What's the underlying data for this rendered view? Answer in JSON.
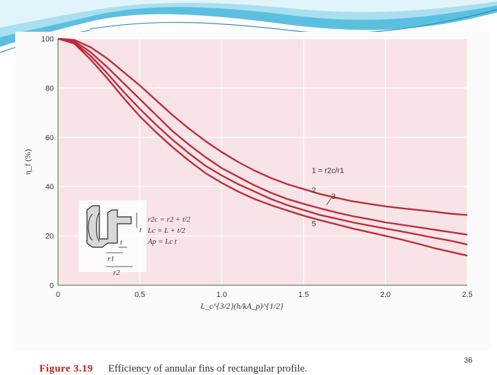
{
  "chart_data": {
    "type": "line",
    "title": "",
    "xlabel": "L_c^{3/2}(h/kA_p)^{1/2}",
    "ylabel": "η_f (%)",
    "xlim": [
      0,
      2.5
    ],
    "ylim": [
      0,
      100
    ],
    "x_ticks": [
      "0",
      "0.5",
      "1.0",
      "1.5",
      "2.0",
      "2.5"
    ],
    "y_ticks": [
      "0",
      "20",
      "40",
      "60",
      "80",
      "100"
    ],
    "x": [
      0,
      0.1,
      0.2,
      0.3,
      0.4,
      0.5,
      0.6,
      0.7,
      0.8,
      0.9,
      1.0,
      1.1,
      1.2,
      1.3,
      1.4,
      1.5,
      1.6,
      1.7,
      1.8,
      1.9,
      2.0,
      2.1,
      2.2,
      2.3,
      2.4,
      2.5
    ],
    "series": [
      {
        "name": "1",
        "label": "1 = r2c/r1",
        "values": [
          100,
          99.5,
          96.5,
          92,
          86.5,
          81,
          75,
          69,
          63.5,
          58.5,
          54,
          50,
          46.5,
          43.5,
          41,
          39,
          37,
          35.5,
          34,
          33,
          32,
          31.2,
          30.5,
          29.8,
          29,
          28.5
        ]
      },
      {
        "name": "2",
        "label": "2",
        "values": [
          100,
          99,
          94.5,
          88.5,
          82,
          75.5,
          69,
          62.5,
          57,
          52,
          47.5,
          44,
          40.5,
          37.5,
          35,
          33,
          31.2,
          29.5,
          28,
          26.8,
          25.5,
          24.5,
          23.5,
          22.5,
          21.5,
          20.5
        ]
      },
      {
        "name": "3",
        "label": "3",
        "values": [
          100,
          98.5,
          93,
          86,
          78.5,
          71.5,
          65,
          59,
          53.5,
          48.5,
          44.5,
          41,
          38,
          35,
          32.5,
          30.5,
          28.5,
          27,
          25.5,
          24.2,
          23,
          21.8,
          20.5,
          19.2,
          18,
          16.5
        ]
      },
      {
        "name": "5",
        "label": "5",
        "values": [
          100,
          98,
          91.5,
          84,
          76,
          68.5,
          62,
          56,
          50.5,
          45.5,
          41.5,
          38,
          35,
          32.5,
          30.3,
          28.2,
          26.4,
          24.7,
          23,
          21.5,
          20,
          18.5,
          16.8,
          15,
          13.5,
          12
        ]
      }
    ],
    "annotations": [
      "r2c = r2 + t/2",
      "Lc = L + t/2",
      "Ap = Lc t",
      "t",
      "t",
      "r1",
      "r2"
    ]
  },
  "caption": {
    "label": "Figure 3.19",
    "text": "Efficiency of annular fins of rectangular profile."
  },
  "slide_number": "36",
  "colors": {
    "plot_bg": "#f8e4e6",
    "curve": "#c0283a",
    "slide_accent": "#3aa8cf",
    "fig_label": "#b22222"
  }
}
